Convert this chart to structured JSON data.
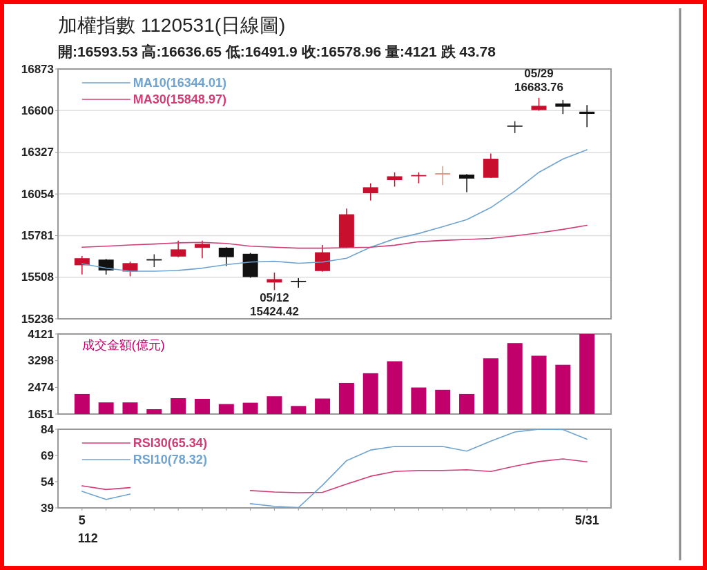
{
  "chart_data": [
    {
      "type": "candlestick",
      "title": "加權指數 1120531(日線圖)",
      "subtitle": "開:16593.53 高:16636.65 低:16491.9 收:16578.96 量:4121 跌 43.78",
      "categories": [
        null,
        null,
        null,
        null,
        null,
        null,
        null,
        null,
        null,
        null,
        null,
        null,
        null,
        null,
        null,
        null,
        null,
        null,
        null,
        null,
        null,
        null
      ],
      "ohlc": [
        [
          15587,
          15647,
          15526,
          15633
        ],
        [
          15624,
          15628,
          15526,
          15553
        ],
        [
          15546,
          15611,
          15514,
          15601
        ],
        [
          15628,
          15659,
          15575,
          15618
        ],
        [
          15644,
          15748,
          15640,
          15691
        ],
        [
          15702,
          15748,
          15633,
          15727
        ],
        [
          15702,
          15705,
          15582,
          15640
        ],
        [
          15662,
          15668,
          15505,
          15510
        ],
        [
          15474,
          15539,
          15424.42,
          15496
        ],
        [
          15485,
          15503,
          15440,
          15477
        ],
        [
          15549,
          15720,
          15545,
          15672
        ],
        [
          15702,
          15958,
          15700,
          15921
        ],
        [
          16059,
          16124,
          16011,
          16098
        ],
        [
          16145,
          16196,
          16102,
          16170
        ],
        [
          16170,
          16196,
          16124,
          16178
        ],
        [
          16182,
          16236,
          16112,
          16190
        ],
        [
          16181,
          16185,
          16066,
          16155
        ],
        [
          16160,
          16319,
          16158,
          16285
        ],
        [
          16503,
          16531,
          16453,
          16494
        ],
        [
          16604,
          16683.76,
          16600,
          16632
        ],
        [
          16647,
          16670,
          16578,
          16626
        ],
        [
          16593.53,
          16636.65,
          16491.9,
          16578.96
        ]
      ],
      "colors": [
        "#c8102e",
        "#111111",
        "#c8102e",
        "#333333",
        "#c8102e",
        "#c8102e",
        "#111111",
        "#111111",
        "#c8102e",
        "#111111",
        "#c8102e",
        "#c8102e",
        "#c8102e",
        "#c8102e",
        "#c8102e",
        "#e0907a",
        "#111111",
        "#c8102e",
        "#333333",
        "#c8102e",
        "#111111",
        "#111111"
      ],
      "series": [
        {
          "name": "MA10(16344.01)",
          "type": "line",
          "color": "#6fa3d0",
          "values": [
            15597,
            15568,
            15548,
            15548,
            15553,
            15568,
            15591,
            15608,
            15613,
            15600,
            15608,
            15633,
            15705,
            15760,
            15795,
            15840,
            15886,
            15965,
            16073,
            16196,
            16283,
            16344.01
          ]
        },
        {
          "name": "MA30(15848.97)",
          "type": "line",
          "color": "#d03c74",
          "values": [
            15705,
            15712,
            15720,
            15726,
            15734,
            15737,
            15730,
            15712,
            15705,
            15699,
            15699,
            15702,
            15705,
            15718,
            15741,
            15750,
            15756,
            15763,
            15780,
            15799,
            15822,
            15848.97
          ]
        }
      ],
      "ylim": [
        15236,
        16873
      ],
      "yticks": [
        15236,
        15508,
        15781,
        16054,
        16327,
        16600,
        16873
      ],
      "grid": "y",
      "legend": "top left",
      "tick_labels": "y",
      "annotations": [
        {
          "text": "05/12",
          "y": 15424.42
        },
        {
          "text": "15424.42",
          "y": 15424.42
        },
        {
          "text": "05/29",
          "y": 16683.76
        },
        {
          "text": "16683.76",
          "y": 16683.76
        }
      ]
    },
    {
      "type": "bar",
      "title": "成交金額(億元)",
      "categories": [
        null,
        null,
        null,
        null,
        null,
        null,
        null,
        null,
        null,
        null,
        null,
        null,
        null,
        null,
        null,
        null,
        null,
        null,
        null,
        null,
        null,
        null
      ],
      "values": [
        2270,
        2010,
        2010,
        1800,
        2140,
        2120,
        1960,
        2000,
        2200,
        1900,
        2130,
        2610,
        2910,
        3280,
        2470,
        2400,
        2270,
        3370,
        3840,
        3450,
        3170,
        4121
      ],
      "color": "#c2006c",
      "ylim": [
        1651,
        4121
      ],
      "yticks": [
        1651,
        2474,
        3298,
        4121
      ],
      "tick_labels": "y"
    },
    {
      "type": "line",
      "categories": [
        "5",
        null,
        null,
        null,
        null,
        null,
        null,
        null,
        null,
        null,
        null,
        null,
        null,
        null,
        null,
        null,
        null,
        null,
        null,
        null,
        null,
        "5/31"
      ],
      "series": [
        {
          "name": "RSI30(65.34)",
          "color": "#d03c74",
          "values": [
            51.6,
            49.5,
            50.6,
            null,
            null,
            null,
            null,
            48.9,
            48.1,
            47.7,
            47.9,
            52.6,
            57.1,
            59.8,
            60.4,
            60.4,
            60.8,
            59.8,
            62.9,
            65.5,
            67.0,
            65.34
          ]
        },
        {
          "name": "RSI10(78.32)",
          "color": "#6fa3d0",
          "values": [
            48.5,
            43.8,
            46.9,
            null,
            null,
            null,
            null,
            41.4,
            39.9,
            39.2,
            52.0,
            66.0,
            72.1,
            74.1,
            74.1,
            74.1,
            71.5,
            77.2,
            82.4,
            84,
            83.8,
            78.32
          ]
        }
      ],
      "ylim": [
        39,
        84
      ],
      "yticks": [
        39,
        54,
        69,
        84
      ],
      "legend": "top left",
      "annotations": [
        "112"
      ]
    }
  ]
}
